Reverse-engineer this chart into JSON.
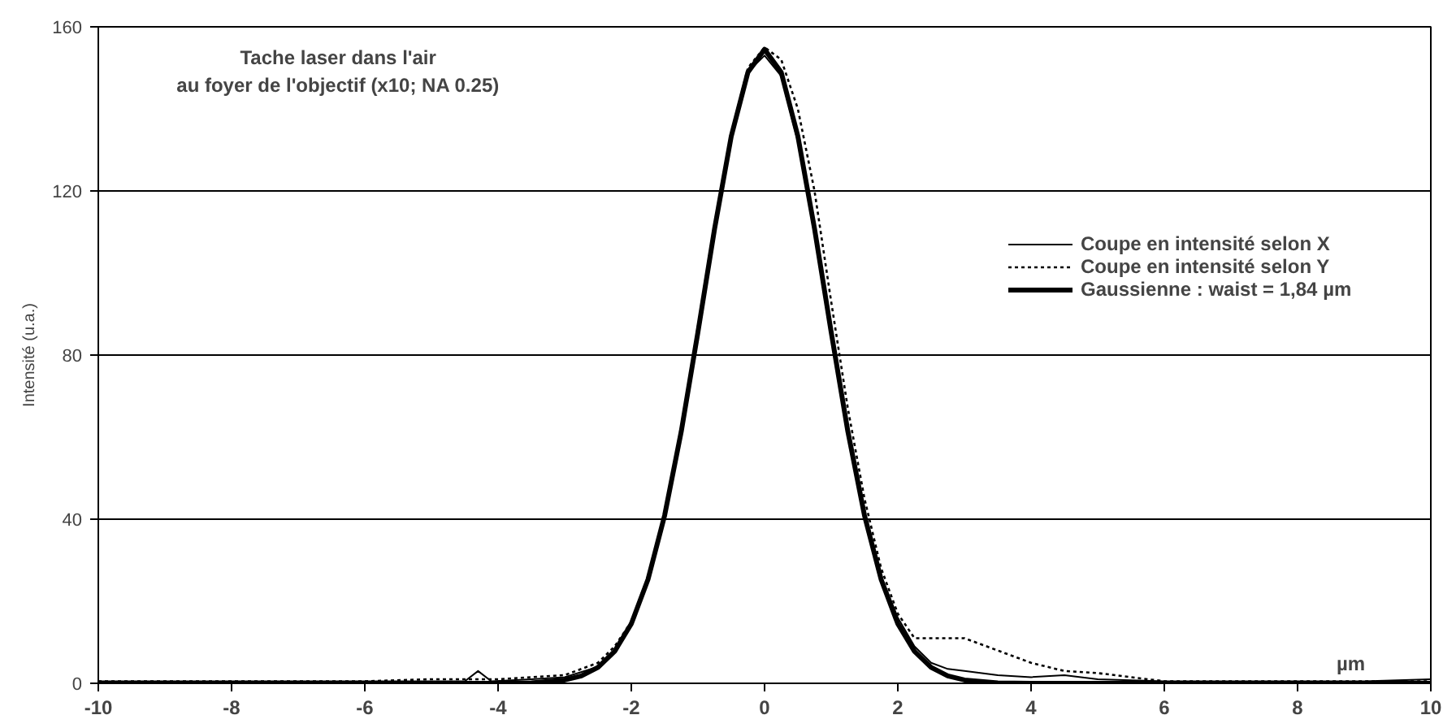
{
  "chart_data": {
    "type": "line",
    "title": "Tache laser dans l'air\nau foyer de l'objectif (x10; NA 0.25)",
    "xlabel": "µm",
    "ylabel": "Intensité (u.a.)",
    "xlim": [
      -10,
      10
    ],
    "xticks": [
      -10,
      -8,
      -6,
      -4,
      -2,
      0,
      2,
      4,
      6,
      8,
      10
    ],
    "ylim": [
      0,
      160
    ],
    "yticks": [
      0,
      40,
      80,
      120,
      160
    ],
    "grid": "y",
    "legend": "right",
    "marker": "none",
    "series": [
      {
        "name": "Coupe en intensité selon X",
        "color": "#000000",
        "line_style": "solid",
        "x": [
          -10,
          -9,
          -8,
          -7,
          -6,
          -5,
          -4.5,
          -4.3,
          -4.1,
          -3.5,
          -3,
          -2.5,
          -2.25,
          -2,
          -1.75,
          -1.5,
          -1.25,
          -1,
          -0.75,
          -0.5,
          -0.25,
          0,
          0.25,
          0.5,
          0.75,
          1,
          1.25,
          1.5,
          1.75,
          2,
          2.25,
          2.5,
          2.75,
          3,
          3.5,
          4,
          4.5,
          5,
          6,
          7,
          8,
          9,
          10
        ],
        "values": [
          0.5,
          0.5,
          0.5,
          0.5,
          0.5,
          0.5,
          0.5,
          3,
          0.5,
          1,
          1.5,
          4,
          8,
          14,
          25,
          40,
          61,
          86,
          111,
          133,
          149,
          153,
          148,
          132,
          110,
          85,
          61,
          41,
          26,
          16,
          9,
          5,
          3.5,
          3,
          2,
          1.5,
          2,
          1,
          0.5,
          0.5,
          0.5,
          0.5,
          1
        ]
      },
      {
        "name": "Coupe en intensité selon Y",
        "color": "#000000",
        "line_style": "dotted",
        "x": [
          -10,
          -9,
          -8,
          -7,
          -6,
          -5,
          -4,
          -3.5,
          -3,
          -2.5,
          -2.25,
          -2,
          -1.75,
          -1.5,
          -1.25,
          -1,
          -0.75,
          -0.5,
          -0.25,
          0,
          0.25,
          0.5,
          0.75,
          1,
          1.25,
          1.5,
          1.75,
          2,
          2.25,
          2.5,
          3,
          3.5,
          4,
          4.5,
          5,
          5.5,
          6,
          8,
          9,
          10
        ],
        "values": [
          0.5,
          0.5,
          0.5,
          0.5,
          0.5,
          1,
          1,
          1.5,
          2,
          5,
          9,
          15,
          26,
          41,
          62,
          87,
          112,
          134,
          150,
          155,
          152,
          140,
          120,
          93,
          67,
          45,
          28,
          17,
          11,
          11,
          11,
          8,
          5,
          3,
          2.5,
          1.5,
          0.5,
          0.5,
          0.5,
          0.5
        ]
      },
      {
        "name": "Gaussienne : waist = 1,84 µm",
        "color": "#000000",
        "line_style": "solid",
        "x": [
          -10,
          -4,
          -3.5,
          -3,
          -2.75,
          -2.5,
          -2.25,
          -2,
          -1.75,
          -1.5,
          -1.25,
          -1,
          -0.75,
          -0.5,
          -0.25,
          0,
          0.25,
          0.5,
          0.75,
          1,
          1.25,
          1.5,
          1.75,
          2,
          2.25,
          2.5,
          2.75,
          3,
          3.5,
          4,
          10
        ],
        "values": [
          0,
          0,
          0.1,
          0.8,
          1.8,
          3.9,
          7.8,
          14.5,
          25.3,
          40.9,
          61.4,
          85.6,
          110.8,
          133.3,
          148.9,
          154.5,
          148.9,
          133.3,
          110.8,
          85.6,
          61.4,
          40.9,
          25.3,
          14.5,
          7.8,
          3.9,
          1.8,
          0.8,
          0.1,
          0,
          0
        ]
      }
    ]
  }
}
